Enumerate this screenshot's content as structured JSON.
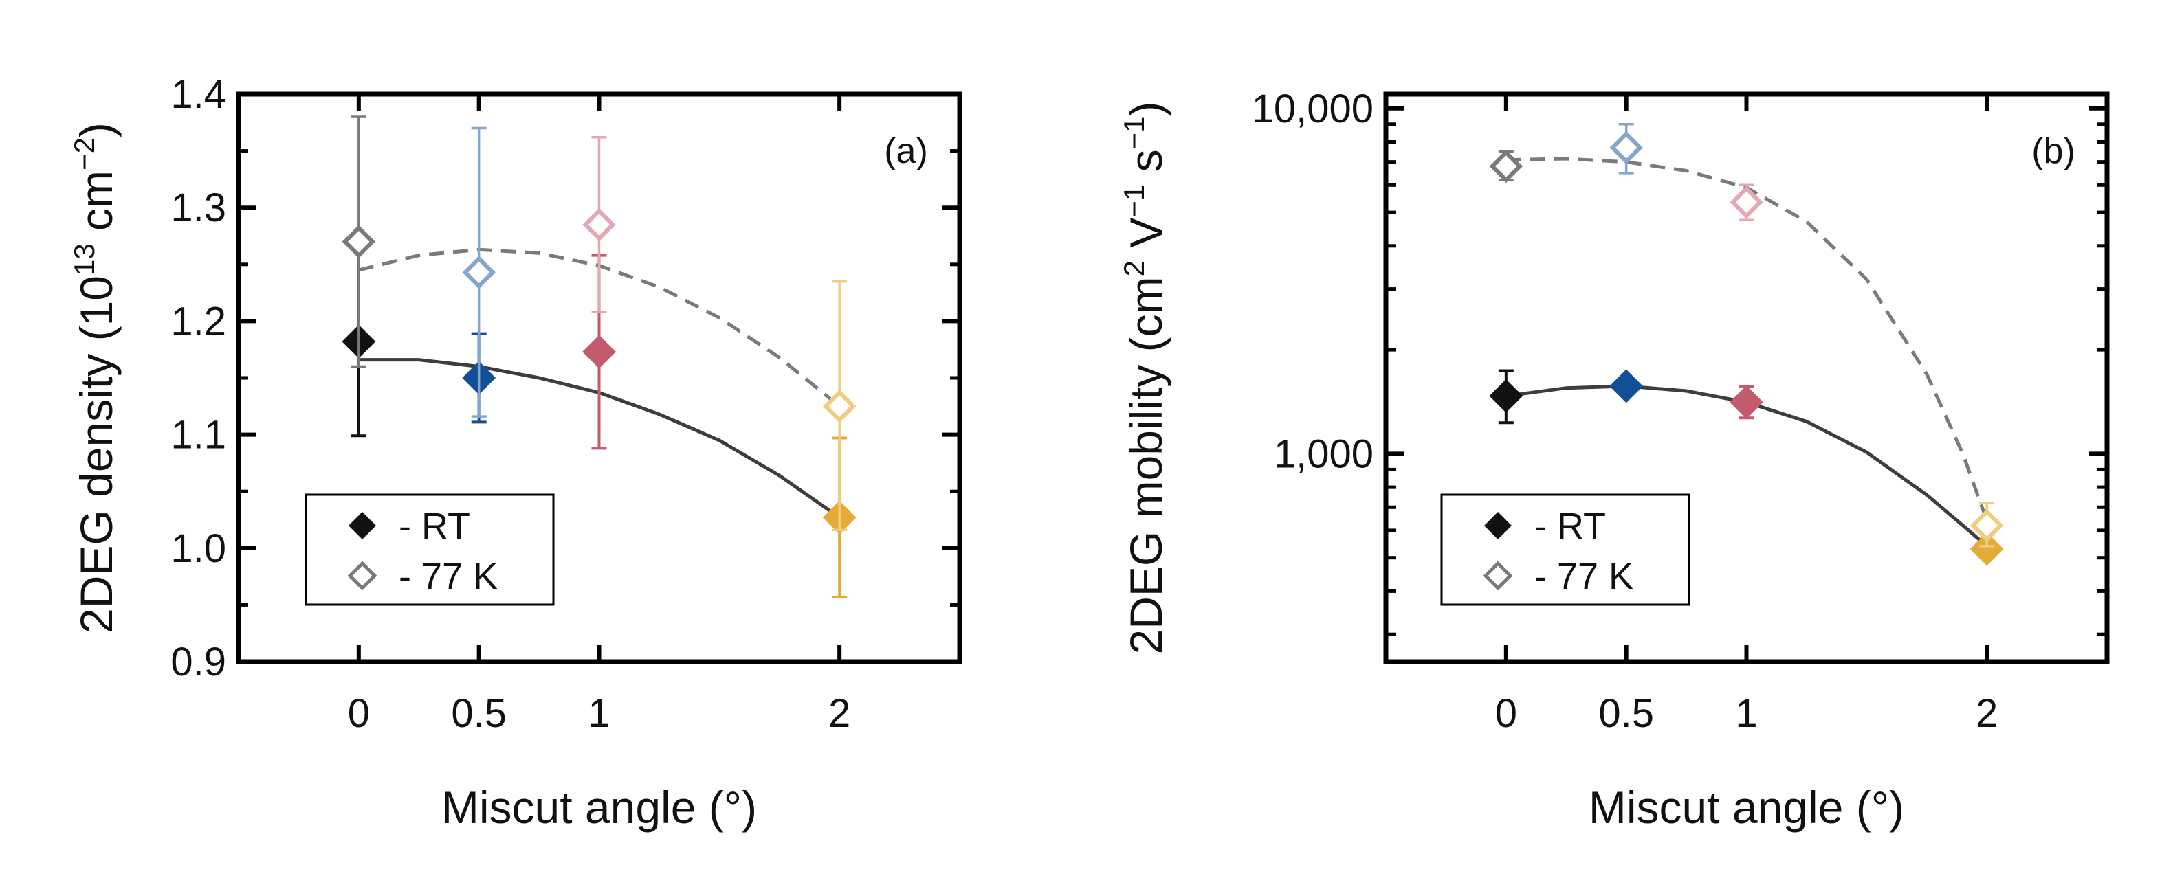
{
  "chart_data": [
    {
      "type": "scatter",
      "panel_label": "(a)",
      "title": "",
      "xlabel": "Miscut angle (°)",
      "ylabel": {
        "main": "2DEG density (10",
        "sup1": "13",
        "mid": " cm",
        "sup2": "−2",
        "end": ")"
      },
      "xlim": [
        -0.5,
        2.5
      ],
      "ylim": [
        0.9,
        1.4
      ],
      "yscale": "linear",
      "x_ticks": [
        0,
        0.5,
        1,
        2
      ],
      "x_tick_labels": [
        "0",
        "0.5",
        "1",
        "2"
      ],
      "y_ticks": [
        0.9,
        1.0,
        1.1,
        1.2,
        1.3,
        1.4
      ],
      "y_tick_labels": [
        "0.9",
        "1.0",
        "1.1",
        "1.2",
        "1.3",
        "1.4"
      ],
      "y_minor_ticks": [
        0.95,
        1.05,
        1.15,
        1.25,
        1.35
      ],
      "legend": {
        "position": "bottom-left",
        "entries": [
          "- RT",
          "- 77 K"
        ]
      },
      "series": [
        {
          "name": "- RT",
          "marker": "filled-diamond",
          "points": [
            {
              "x": 0,
              "y": 1.182,
              "err_low": 1.099,
              "err_high": 1.265,
              "color": "#111111"
            },
            {
              "x": 0.5,
              "y": 1.15,
              "err_low": 1.111,
              "err_high": 1.189,
              "color": "#134f95"
            },
            {
              "x": 1,
              "y": 1.173,
              "err_low": 1.088,
              "err_high": 1.258,
              "color": "#c45a6e"
            },
            {
              "x": 2,
              "y": 1.027,
              "err_low": 0.957,
              "err_high": 1.097,
              "color": "#e4ac37"
            }
          ],
          "fit": {
            "style": "solid",
            "color": "#3d3d3d",
            "x": [
              0,
              0.25,
              0.5,
              0.75,
              1,
              1.25,
              1.5,
              1.75,
              2
            ],
            "y": [
              1.166,
              1.166,
              1.16,
              1.15,
              1.137,
              1.118,
              1.095,
              1.064,
              1.027
            ]
          }
        },
        {
          "name": "- 77 K",
          "marker": "open-diamond",
          "points": [
            {
              "x": 0,
              "y": 1.27,
              "err_low": 1.16,
              "err_high": 1.38,
              "color": "#7a7a7a"
            },
            {
              "x": 0.5,
              "y": 1.243,
              "err_low": 1.116,
              "err_high": 1.37,
              "color": "#85a5cd"
            },
            {
              "x": 1,
              "y": 1.285,
              "err_low": 1.208,
              "err_high": 1.362,
              "color": "#e4a7b4"
            },
            {
              "x": 2,
              "y": 1.125,
              "err_low": 1.016,
              "err_high": 1.235,
              "color": "#efcd7e"
            }
          ],
          "fit": {
            "style": "dashed",
            "color": "#7a7a7a",
            "x": [
              0,
              0.25,
              0.5,
              0.75,
              1,
              1.25,
              1.5,
              1.75,
              2
            ],
            "y": [
              1.245,
              1.258,
              1.263,
              1.26,
              1.249,
              1.23,
              1.203,
              1.168,
              1.125
            ]
          }
        }
      ]
    },
    {
      "type": "scatter",
      "panel_label": "(b)",
      "title": "",
      "xlabel": "Miscut angle (°)",
      "ylabel": {
        "main": "2DEG mobility (cm",
        "sup1": "2",
        "mid": " V",
        "sup2": "−1",
        "mid2": " s",
        "sup3": "−1",
        "end": ")"
      },
      "xlim": [
        -0.5,
        2.5
      ],
      "ylim": [
        250,
        11000
      ],
      "yscale": "log",
      "x_ticks": [
        0,
        0.5,
        1,
        2
      ],
      "x_tick_labels": [
        "0",
        "0.5",
        "1",
        "2"
      ],
      "y_ticks": [
        1000,
        10000
      ],
      "y_tick_labels": [
        "1,000",
        "10,000"
      ],
      "y_minor_ticks": [
        300,
        400,
        500,
        600,
        700,
        800,
        900,
        2000,
        3000,
        4000,
        5000,
        6000,
        7000,
        8000,
        9000
      ],
      "legend": {
        "position": "bottom-left",
        "entries": [
          "- RT",
          "- 77 K"
        ]
      },
      "series": [
        {
          "name": "- RT",
          "marker": "filled-diamond",
          "points": [
            {
              "x": 0,
              "y": 1470,
              "err_low": 1230,
              "err_high": 1740,
              "color": "#111111"
            },
            {
              "x": 0.5,
              "y": 1570,
              "err_low": 1520,
              "err_high": 1630,
              "color": "#134f95"
            },
            {
              "x": 1,
              "y": 1410,
              "err_low": 1270,
              "err_high": 1570,
              "color": "#c45a6e"
            },
            {
              "x": 2,
              "y": 530,
              "err_low": 510,
              "err_high": 550,
              "color": "#e4ac37"
            }
          ],
          "fit": {
            "style": "solid",
            "color": "#3d3d3d",
            "x": [
              0,
              0.25,
              0.5,
              0.75,
              1,
              1.25,
              1.5,
              1.75,
              1.9,
              2
            ],
            "y": [
              1470,
              1550,
              1570,
              1520,
              1410,
              1240,
              1010,
              760,
              620,
              540
            ]
          }
        },
        {
          "name": "- 77 K",
          "marker": "open-diamond",
          "points": [
            {
              "x": 0,
              "y": 6800,
              "err_low": 6200,
              "err_high": 7500,
              "color": "#7a7a7a"
            },
            {
              "x": 0.5,
              "y": 7700,
              "err_low": 6500,
              "err_high": 9000,
              "color": "#85a5cd"
            },
            {
              "x": 1,
              "y": 5350,
              "err_low": 4750,
              "err_high": 6000,
              "color": "#e4a7b4"
            },
            {
              "x": 2,
              "y": 620,
              "err_low": 540,
              "err_high": 720,
              "color": "#efcd7e"
            }
          ],
          "fit": {
            "style": "dashed",
            "color": "#7a7a7a",
            "x": [
              0,
              0.25,
              0.5,
              0.75,
              1,
              1.25,
              1.5,
              1.75,
              1.9,
              2
            ],
            "y": [
              7100,
              7150,
              7000,
              6600,
              5900,
              4700,
              3200,
              1700,
              1000,
              640
            ]
          }
        }
      ]
    }
  ]
}
